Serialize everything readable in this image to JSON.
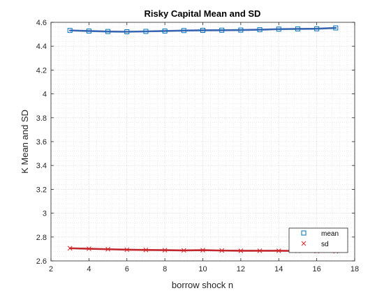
{
  "chart_data": {
    "type": "line",
    "title": "Risky Capital Mean and SD",
    "xlabel": "borrow shock n",
    "ylabel": "K Mean and SD",
    "xlim": [
      2,
      18
    ],
    "ylim": [
      2.6,
      4.6
    ],
    "xticks": [
      2,
      4,
      6,
      8,
      10,
      12,
      14,
      16,
      18
    ],
    "yticks": [
      2.6,
      2.8,
      3,
      3.2,
      3.4,
      3.6,
      3.8,
      4,
      4.2,
      4.4,
      4.6
    ],
    "xtick_labels": [
      "2",
      "4",
      "6",
      "8",
      "10",
      "12",
      "14",
      "16",
      "18"
    ],
    "ytick_labels": [
      "2.6",
      "2.8",
      "3",
      "3.2",
      "3.4",
      "3.6",
      "3.8",
      "4",
      "4.2",
      "4.4",
      "4.6"
    ],
    "grid": "on (major and minor, dotted)",
    "legend_position": "bottom-right",
    "x": [
      3,
      4,
      5,
      6,
      7,
      8,
      9,
      10,
      11,
      12,
      13,
      14,
      15,
      16,
      17
    ],
    "series": [
      {
        "name": "mean",
        "marker": "square",
        "marker_color": "#0072BD",
        "line_color": "#3A65B0",
        "values": [
          4.532,
          4.527,
          4.523,
          4.521,
          4.524,
          4.527,
          4.531,
          4.533,
          4.534,
          4.535,
          4.538,
          4.543,
          4.545,
          4.546,
          4.553
        ]
      },
      {
        "name": "sd",
        "marker": "x",
        "marker_color": "#D62728",
        "line_color": "#C1272D",
        "values": [
          2.706,
          2.702,
          2.698,
          2.694,
          2.692,
          2.69,
          2.688,
          2.69,
          2.687,
          2.685,
          2.685,
          2.685,
          2.684,
          2.682,
          2.681
        ]
      }
    ]
  }
}
